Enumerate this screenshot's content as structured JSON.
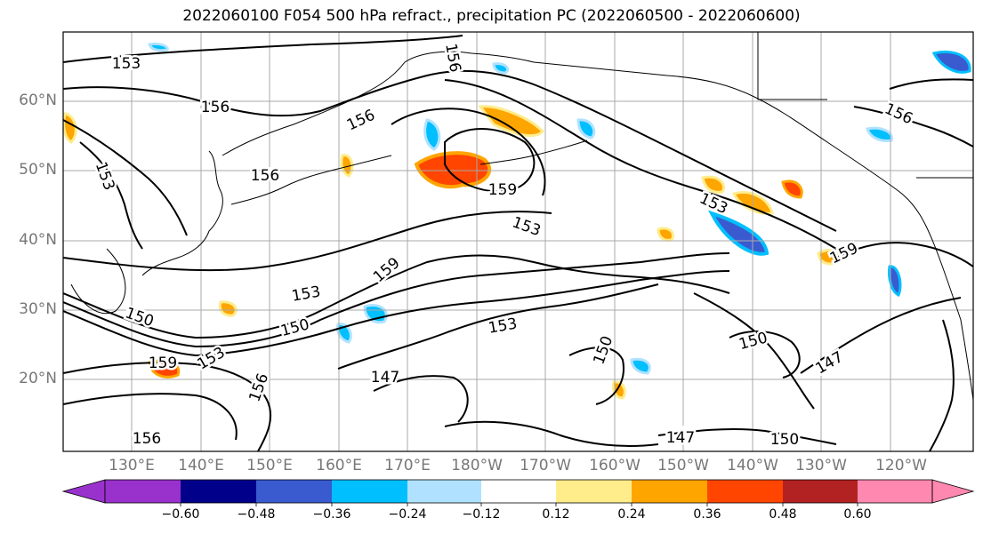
{
  "title": "2022060100 F054 500 hPa refract., precipitation PC (2022060500 - 2022060600)",
  "lat_labels": [
    "60°N",
    "50°N",
    "40°N",
    "30°N",
    "20°N"
  ],
  "lon_labels": [
    "130°E",
    "140°E",
    "150°E",
    "160°E",
    "170°E",
    "180°W",
    "170°W",
    "160°W",
    "150°W",
    "140°W",
    "130°W",
    "120°W"
  ],
  "contour_labels": [
    "153",
    "156",
    "156",
    "156",
    "153",
    "159",
    "153",
    "159",
    "153",
    "156",
    "156",
    "153",
    "150",
    "159",
    "153",
    "153",
    "150",
    "147",
    "150",
    "156",
    "147",
    "150",
    "156",
    "150",
    "147",
    "159"
  ],
  "colorbar": {
    "tick_labels": [
      "−0.60",
      "−0.48",
      "−0.36",
      "−0.24",
      "−0.12",
      "0.12",
      "0.24",
      "0.36",
      "0.48",
      "0.60"
    ],
    "colors": [
      "#9932cc",
      "#00008b",
      "#3a5bd0",
      "#00bfff",
      "#b0e2ff",
      "#ffffff",
      "#ffec8b",
      "#ffa500",
      "#ff4500",
      "#b22222",
      "#ff88b0"
    ]
  }
}
